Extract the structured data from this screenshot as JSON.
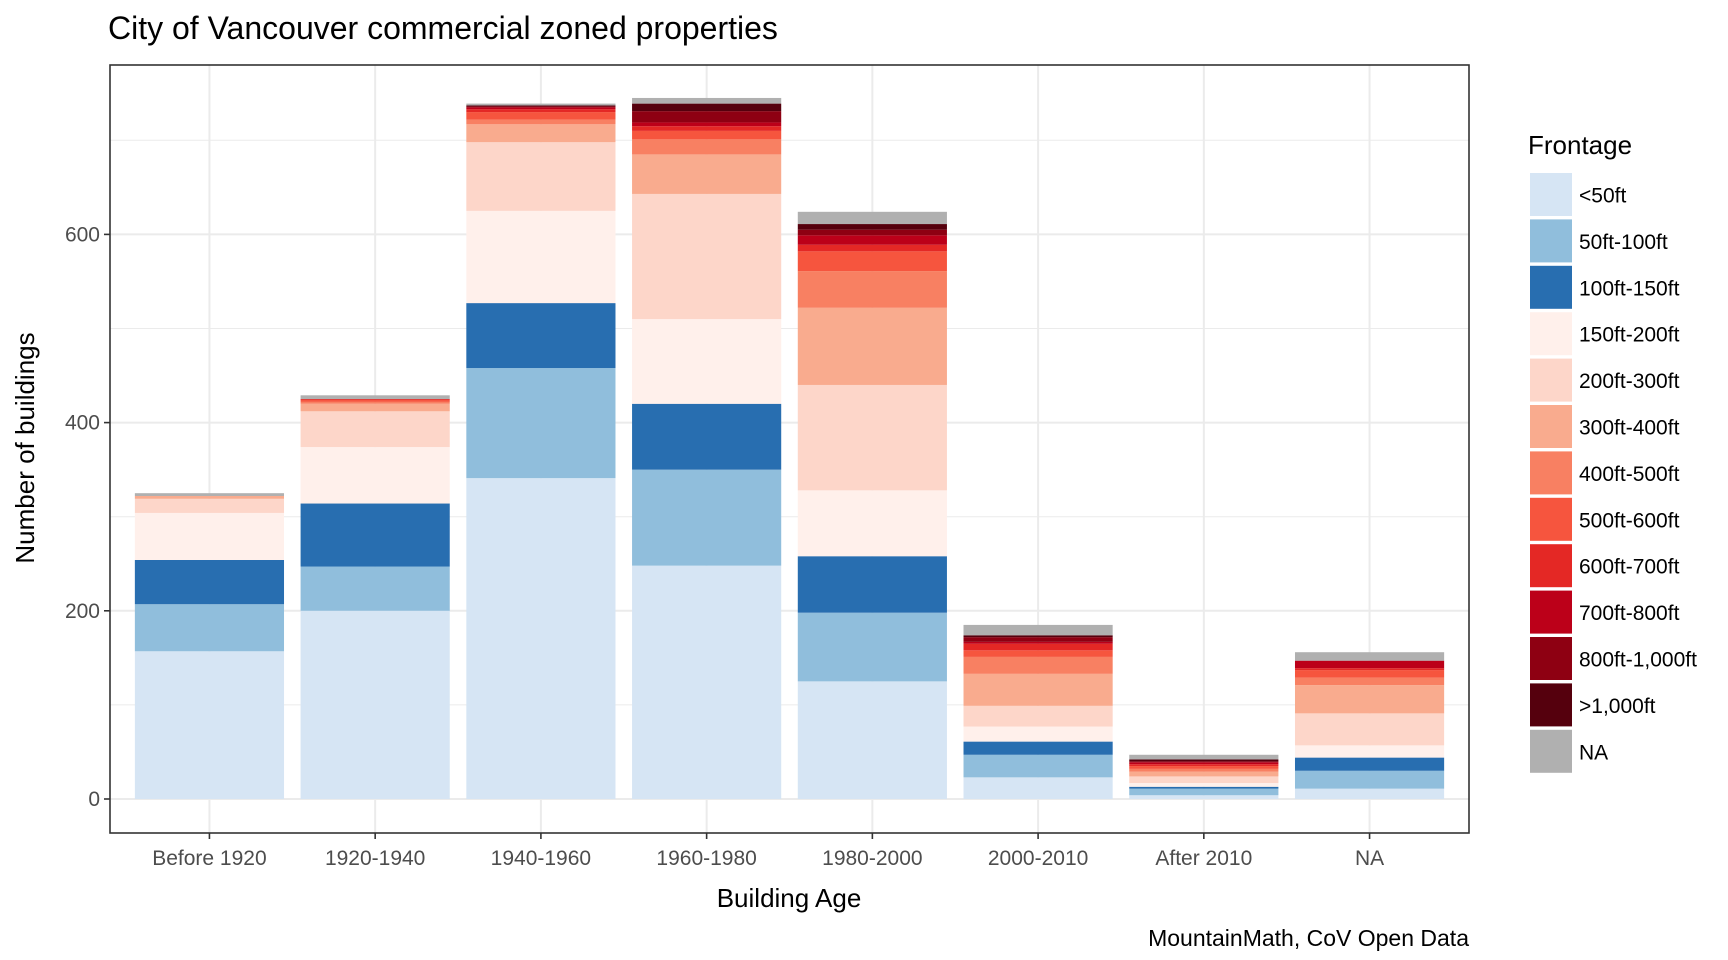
{
  "chart_data": {
    "type": "bar",
    "stacked": true,
    "title": "City of Vancouver commercial zoned properties",
    "xlabel": "Building Age",
    "ylabel": "Number of buildings",
    "caption": "MountainMath, CoV Open Data",
    "ylim": [
      -38,
      775
    ],
    "yticks": [
      0,
      200,
      400,
      600
    ],
    "grid": true,
    "legend": {
      "title": "Frontage",
      "position": "right"
    },
    "categories": [
      "Before 1920",
      "1920-1940",
      "1940-1960",
      "1960-1980",
      "1980-2000",
      "2000-2010",
      "After 2010",
      "NA"
    ],
    "series": [
      {
        "name": "<50ft",
        "color": "#d6e5f4",
        "values": [
          157,
          200,
          341,
          248,
          125,
          23,
          4,
          11
        ]
      },
      {
        "name": "50ft-100ft",
        "color": "#90bedc",
        "values": [
          50,
          47,
          117,
          102,
          73,
          24,
          7,
          19
        ]
      },
      {
        "name": "100ft-150ft",
        "color": "#286eb0",
        "values": [
          47,
          67,
          69,
          70,
          60,
          14,
          2,
          14
        ]
      },
      {
        "name": "150ft-200ft",
        "color": "#fff0eb",
        "values": [
          50,
          60,
          98,
          90,
          70,
          16,
          4,
          13
        ]
      },
      {
        "name": "200ft-300ft",
        "color": "#fdd6c9",
        "values": [
          15,
          38,
          73,
          133,
          112,
          22,
          7,
          34
        ]
      },
      {
        "name": "300ft-400ft",
        "color": "#f9ab8e",
        "values": [
          3,
          8,
          19,
          42,
          82,
          34,
          5,
          30
        ]
      },
      {
        "name": "400ft-500ft",
        "color": "#f88062",
        "values": [
          0,
          2,
          5,
          16,
          39,
          18,
          3,
          8
        ]
      },
      {
        "name": "500ft-600ft",
        "color": "#f6553e",
        "values": [
          0,
          2,
          8,
          9,
          21,
          7,
          3,
          8
        ]
      },
      {
        "name": "600ft-700ft",
        "color": "#e42825",
        "values": [
          0,
          1,
          3,
          5,
          7,
          7,
          2,
          2
        ]
      },
      {
        "name": "700ft-800ft",
        "color": "#bc0019",
        "values": [
          0,
          0,
          2,
          4,
          10,
          2,
          2,
          8
        ]
      },
      {
        "name": "800ft-1,000ft",
        "color": "#8e0012",
        "values": [
          0,
          0,
          1,
          12,
          6,
          5,
          1,
          0
        ]
      },
      {
        "name": ">1,000ft",
        "color": "#55000d",
        "values": [
          0,
          0,
          1,
          8,
          6,
          2,
          2,
          0
        ]
      },
      {
        "name": "NA",
        "color": "#b0b0b0",
        "values": [
          3,
          4,
          2,
          6,
          13,
          11,
          5,
          9
        ]
      }
    ]
  }
}
